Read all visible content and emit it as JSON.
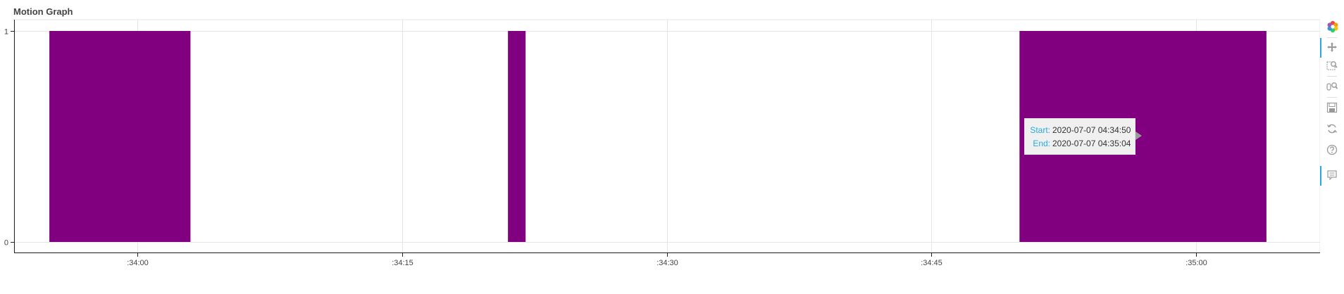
{
  "title": "Motion Graph",
  "chart_data": {
    "type": "bar",
    "title": "Motion Graph",
    "xlabel": "",
    "ylabel": "",
    "x_axis": "time",
    "xlim": [
      "2020-07-07 04:33:53",
      "2020-07-07 04:35:07"
    ],
    "ylim": [
      0,
      1
    ],
    "x_ticks": [
      ":34:00",
      ":34:15",
      ":34:30",
      ":34:45",
      ":35:00"
    ],
    "x_tick_values": [
      "2020-07-07 04:34:00",
      "2020-07-07 04:34:15",
      "2020-07-07 04:34:30",
      "2020-07-07 04:34:45",
      "2020-07-07 04:35:00"
    ],
    "y_ticks": [
      "0",
      "1"
    ],
    "y_tick_values": [
      0,
      1
    ],
    "grid": true,
    "color": "#800080",
    "intervals": [
      {
        "start": "2020-07-07 04:33:55",
        "end": "2020-07-07 04:34:03",
        "value": 1
      },
      {
        "start": "2020-07-07 04:34:21",
        "end": "2020-07-07 04:34:22",
        "value": 1
      },
      {
        "start": "2020-07-07 04:34:50",
        "end": "2020-07-07 04:35:04",
        "value": 1
      }
    ]
  },
  "tooltip": {
    "start_label": "Start:",
    "start_value": "2020-07-07 04:34:50",
    "end_label": "End:",
    "end_value": "2020-07-07 04:35:04",
    "accent": "#26aae1"
  },
  "toolbar": {
    "tools": [
      {
        "name": "bokeh-logo-icon",
        "active": false
      },
      {
        "name": "pan-icon",
        "active": true
      },
      {
        "name": "box-zoom-icon",
        "active": false
      },
      {
        "name": "wheel-zoom-icon",
        "active": false
      },
      {
        "name": "save-icon",
        "active": false
      },
      {
        "name": "reset-icon",
        "active": false
      },
      {
        "name": "help-icon",
        "active": false
      },
      {
        "name": "hover-icon",
        "active": true
      }
    ],
    "accent": "#26aae1"
  }
}
